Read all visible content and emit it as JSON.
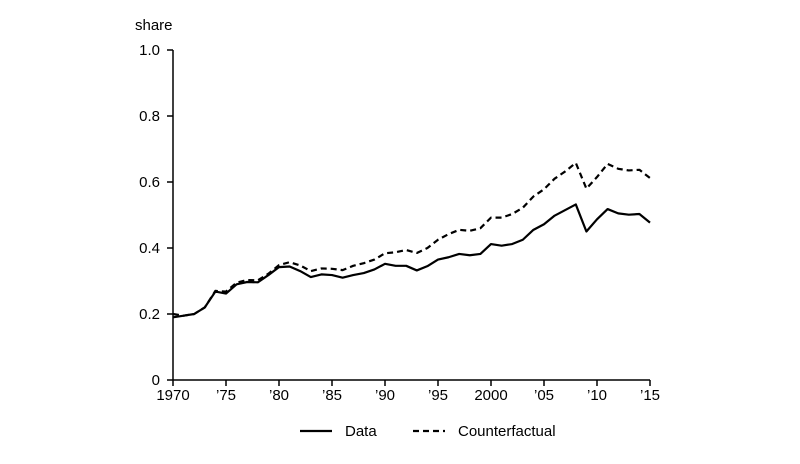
{
  "chart_data": {
    "type": "line",
    "title": "",
    "ylabel": "share",
    "xlabel": "",
    "xlim": [
      1970,
      2015
    ],
    "ylim": [
      0,
      1.0
    ],
    "grid": false,
    "legend_position": "bottom-center",
    "y_ticks": [
      {
        "value": 0,
        "label": "0"
      },
      {
        "value": 0.2,
        "label": "0.2"
      },
      {
        "value": 0.4,
        "label": "0.4"
      },
      {
        "value": 0.6,
        "label": "0.6"
      },
      {
        "value": 0.8,
        "label": "0.8"
      },
      {
        "value": 1.0,
        "label": "1.0"
      }
    ],
    "x_ticks": [
      {
        "value": 1970,
        "label": "1970"
      },
      {
        "value": 1975,
        "label": "’75"
      },
      {
        "value": 1980,
        "label": "’80"
      },
      {
        "value": 1985,
        "label": "’85"
      },
      {
        "value": 1990,
        "label": "’90"
      },
      {
        "value": 1995,
        "label": "’95"
      },
      {
        "value": 2000,
        "label": "2000"
      },
      {
        "value": 2005,
        "label": "’05"
      },
      {
        "value": 2010,
        "label": "’10"
      },
      {
        "value": 2015,
        "label": "’15"
      }
    ],
    "x": [
      1970,
      1971,
      1972,
      1973,
      1974,
      1975,
      1976,
      1977,
      1978,
      1979,
      1980,
      1981,
      1982,
      1983,
      1984,
      1985,
      1986,
      1987,
      1988,
      1989,
      1990,
      1991,
      1992,
      1993,
      1994,
      1995,
      1996,
      1997,
      1998,
      1999,
      2000,
      2001,
      2002,
      2003,
      2004,
      2005,
      2006,
      2007,
      2008,
      2009,
      2010,
      2011,
      2012,
      2013,
      2014,
      2015
    ],
    "series": [
      {
        "name": "Data",
        "style": "solid",
        "color": "#000000",
        "values": [
          0.19,
          0.195,
          0.2,
          0.22,
          0.268,
          0.262,
          0.29,
          0.297,
          0.296,
          0.318,
          0.342,
          0.344,
          0.33,
          0.312,
          0.32,
          0.318,
          0.31,
          0.318,
          0.324,
          0.335,
          0.352,
          0.346,
          0.346,
          0.332,
          0.345,
          0.365,
          0.372,
          0.382,
          0.378,
          0.382,
          0.412,
          0.407,
          0.412,
          0.425,
          0.455,
          0.472,
          0.498,
          0.515,
          0.532,
          0.45,
          0.487,
          0.518,
          0.505,
          0.501,
          0.503,
          0.477
        ]
      },
      {
        "name": "Counterfactual",
        "style": "dashed",
        "color": "#000000",
        "values": [
          0.2,
          0.195,
          0.2,
          0.22,
          0.27,
          0.268,
          0.295,
          0.303,
          0.302,
          0.322,
          0.348,
          0.357,
          0.347,
          0.33,
          0.338,
          0.337,
          0.333,
          0.346,
          0.354,
          0.365,
          0.384,
          0.387,
          0.394,
          0.385,
          0.4,
          0.425,
          0.442,
          0.455,
          0.452,
          0.46,
          0.492,
          0.492,
          0.503,
          0.522,
          0.556,
          0.578,
          0.61,
          0.632,
          0.658,
          0.58,
          0.615,
          0.655,
          0.64,
          0.635,
          0.637,
          0.612
        ]
      }
    ]
  }
}
